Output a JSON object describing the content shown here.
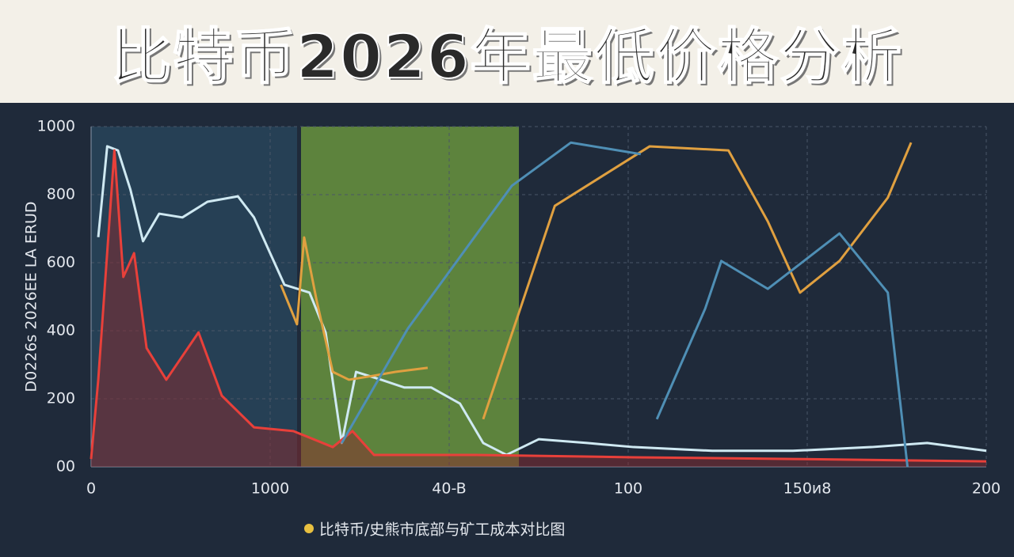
{
  "chart_data": {
    "type": "line",
    "title": "比特币2026年最低价格分析",
    "ylabel": "D0226s 2026EE LA ERUD",
    "caption": "比特币/史熊市底部与矿工成本对比图",
    "xlim": [
      0,
      5
    ],
    "xticks": [
      {
        "value": 0,
        "label": "0"
      },
      {
        "value": 1,
        "label": "1000"
      },
      {
        "value": 2,
        "label": "40-B"
      },
      {
        "value": 3,
        "label": "100"
      },
      {
        "value": 4,
        "label": "150и8"
      },
      {
        "value": 5,
        "label": "200"
      }
    ],
    "ylim": [
      0,
      1000
    ],
    "yticks": [
      {
        "value": 0,
        "label": "00"
      },
      200,
      400,
      600,
      800,
      1000
    ],
    "grid": true,
    "series": [
      {
        "name": "white",
        "color": "#cfe9f2",
        "x": [
          0.04,
          0.09,
          0.15,
          0.22,
          0.29,
          0.38,
          0.51,
          0.65,
          0.82,
          0.91,
          1.0,
          1.08,
          1.22,
          1.31,
          1.4,
          1.48,
          1.62,
          1.75,
          1.9,
          2.06,
          2.19,
          2.32,
          2.5,
          2.77,
          3.03,
          3.47,
          3.92,
          4.36,
          4.67,
          5
        ],
        "values": [
          675,
          942,
          930,
          814,
          663,
          744,
          733,
          779,
          795,
          733,
          628,
          535,
          512,
          395,
          70,
          279,
          256,
          233,
          233,
          186,
          70,
          35,
          81,
          70,
          58,
          47,
          47,
          58,
          70,
          47
        ]
      },
      {
        "name": "red",
        "color": "#e8403a",
        "x": [
          0,
          0.04,
          0.13,
          0.18,
          0.24,
          0.31,
          0.42,
          0.6,
          0.73,
          0.91,
          1.13,
          1.35,
          1.46,
          1.58,
          2.15,
          3.03,
          3.92,
          5
        ],
        "values": [
          23,
          256,
          930,
          558,
          628,
          349,
          256,
          395,
          209,
          116,
          105,
          58,
          105,
          35,
          35,
          28,
          23,
          16
        ]
      },
      {
        "name": "orange",
        "color": "#e0a040",
        "x": [
          1.06,
          1.15,
          1.19,
          1.26,
          1.35,
          1.44,
          1.57,
          1.7,
          1.88,
          2.0,
          2.19,
          2.59,
          3.12,
          3.56,
          3.78,
          3.96,
          4.18,
          4.45,
          4.58
        ],
        "values": [
          535,
          419,
          674,
          488,
          279,
          256,
          267,
          279,
          291,
          null,
          140,
          767,
          942,
          930,
          721,
          512,
          605,
          791,
          953
        ]
      },
      {
        "name": "blue",
        "color": "#4f8fb5",
        "x": [
          1.4,
          1.77,
          2.35,
          2.68,
          3.07,
          3.1,
          3.16,
          3.43,
          3.52,
          3.78,
          4.18,
          4.45,
          4.56
        ],
        "values": [
          70,
          407,
          826,
          953,
          919,
          null,
          140,
          465,
          605,
          523,
          686,
          512,
          0
        ]
      }
    ]
  }
}
